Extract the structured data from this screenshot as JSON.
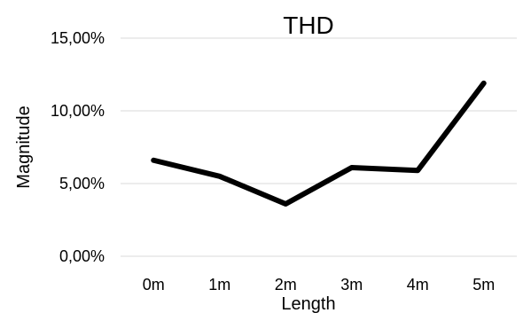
{
  "chart_data": {
    "type": "line",
    "title": "THD",
    "xlabel": "Length",
    "ylabel": "Magnitude",
    "categories": [
      "0m",
      "1m",
      "2m",
      "3m",
      "4m",
      "5m"
    ],
    "series": [
      {
        "values": [
          6.6,
          5.5,
          3.6,
          6.1,
          5.9,
          11.9
        ]
      }
    ],
    "ylim": [
      0,
      15
    ],
    "yticks": [
      0,
      5,
      10,
      15
    ],
    "ytick_labels": [
      "0,00%",
      "5,00%",
      "10,00%",
      "15,00%"
    ],
    "grid": true,
    "legend": "none",
    "colors": {
      "line": "#000000",
      "grid": "#d9d9d9"
    }
  }
}
